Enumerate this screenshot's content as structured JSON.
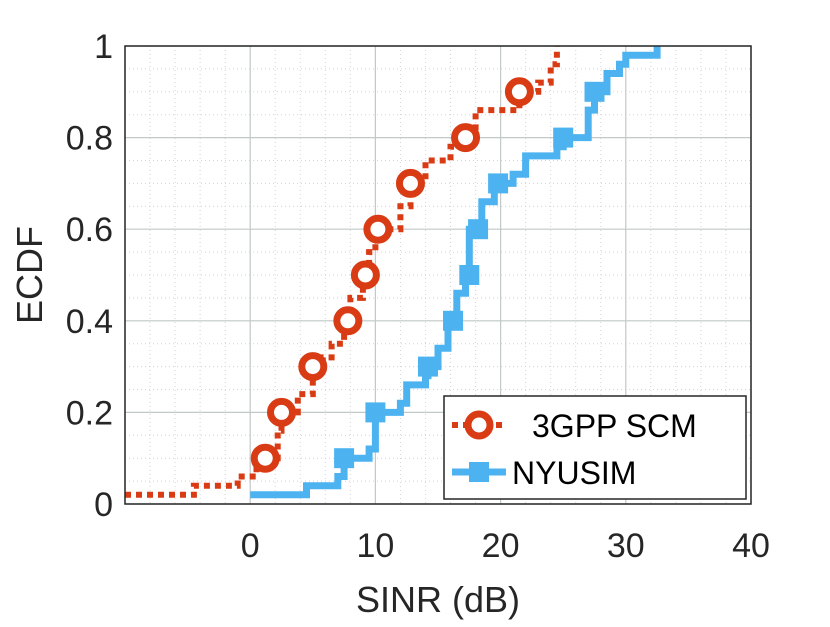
{
  "chart_data": {
    "type": "line",
    "title": "",
    "xlabel": "SINR (dB)",
    "ylabel": "ECDF",
    "xlim": [
      -10,
      40
    ],
    "ylim": [
      0,
      1
    ],
    "xticks": [
      0,
      10,
      20,
      30,
      40
    ],
    "yticks": [
      0,
      0.2,
      0.4,
      0.6,
      0.8,
      1
    ],
    "xtick_labels": [
      "0",
      "10",
      "20",
      "30",
      "40"
    ],
    "ytick_labels": [
      "0",
      "0.2",
      "0.4",
      "0.6",
      "0.8",
      "1"
    ],
    "grid": true,
    "minor_grid": true,
    "legend_position": "bottom-right",
    "series": [
      {
        "name": "3GPP SCM",
        "color": "#d93c14",
        "line_style": "dotted",
        "marker": "circle",
        "x": [
          -10,
          -5,
          -4.5,
          -1,
          0.5,
          1.2,
          2.2,
          2.5,
          3.8,
          5,
          5.8,
          6.5,
          7.5,
          8.0,
          9.0,
          9.5,
          10,
          12,
          12.8,
          14,
          16,
          17.2,
          18,
          21.5,
          23,
          24,
          24.5
        ],
        "y": [
          0.02,
          0.02,
          0.04,
          0.06,
          0.08,
          0.1,
          0.16,
          0.2,
          0.24,
          0.3,
          0.32,
          0.35,
          0.4,
          0.45,
          0.5,
          0.55,
          0.6,
          0.65,
          0.7,
          0.75,
          0.78,
          0.8,
          0.86,
          0.9,
          0.92,
          0.96,
          1.0
        ],
        "marker_points": [
          {
            "x": 1.2,
            "y": 0.1
          },
          {
            "x": 2.5,
            "y": 0.2
          },
          {
            "x": 5,
            "y": 0.3
          },
          {
            "x": 7.8,
            "y": 0.4
          },
          {
            "x": 9.2,
            "y": 0.5
          },
          {
            "x": 10.2,
            "y": 0.6
          },
          {
            "x": 12.8,
            "y": 0.7
          },
          {
            "x": 17.2,
            "y": 0.8
          },
          {
            "x": 21.5,
            "y": 0.9
          }
        ]
      },
      {
        "name": "NYUSIM",
        "color": "#4db3f0",
        "line_style": "solid",
        "marker": "square",
        "x": [
          0,
          4,
          4.5,
          7,
          7.5,
          9.5,
          10,
          12,
          12.5,
          14,
          14.2,
          15,
          15.8,
          16.5,
          17.2,
          17.5,
          18.5,
          19.5,
          21,
          22,
          24.5,
          25,
          27,
          27.5,
          28.5,
          29.5,
          30,
          32.5
        ],
        "y": [
          0.02,
          0.02,
          0.04,
          0.06,
          0.1,
          0.12,
          0.2,
          0.22,
          0.26,
          0.28,
          0.3,
          0.34,
          0.4,
          0.46,
          0.5,
          0.6,
          0.66,
          0.7,
          0.72,
          0.76,
          0.78,
          0.8,
          0.86,
          0.9,
          0.94,
          0.96,
          0.98,
          1.0
        ],
        "marker_points": [
          {
            "x": 7.5,
            "y": 0.1
          },
          {
            "x": 10,
            "y": 0.2
          },
          {
            "x": 14.2,
            "y": 0.3
          },
          {
            "x": 16.2,
            "y": 0.4
          },
          {
            "x": 17.5,
            "y": 0.5
          },
          {
            "x": 18.2,
            "y": 0.6
          },
          {
            "x": 19.8,
            "y": 0.7
          },
          {
            "x": 25,
            "y": 0.8
          },
          {
            "x": 27.5,
            "y": 0.9
          }
        ]
      }
    ]
  }
}
